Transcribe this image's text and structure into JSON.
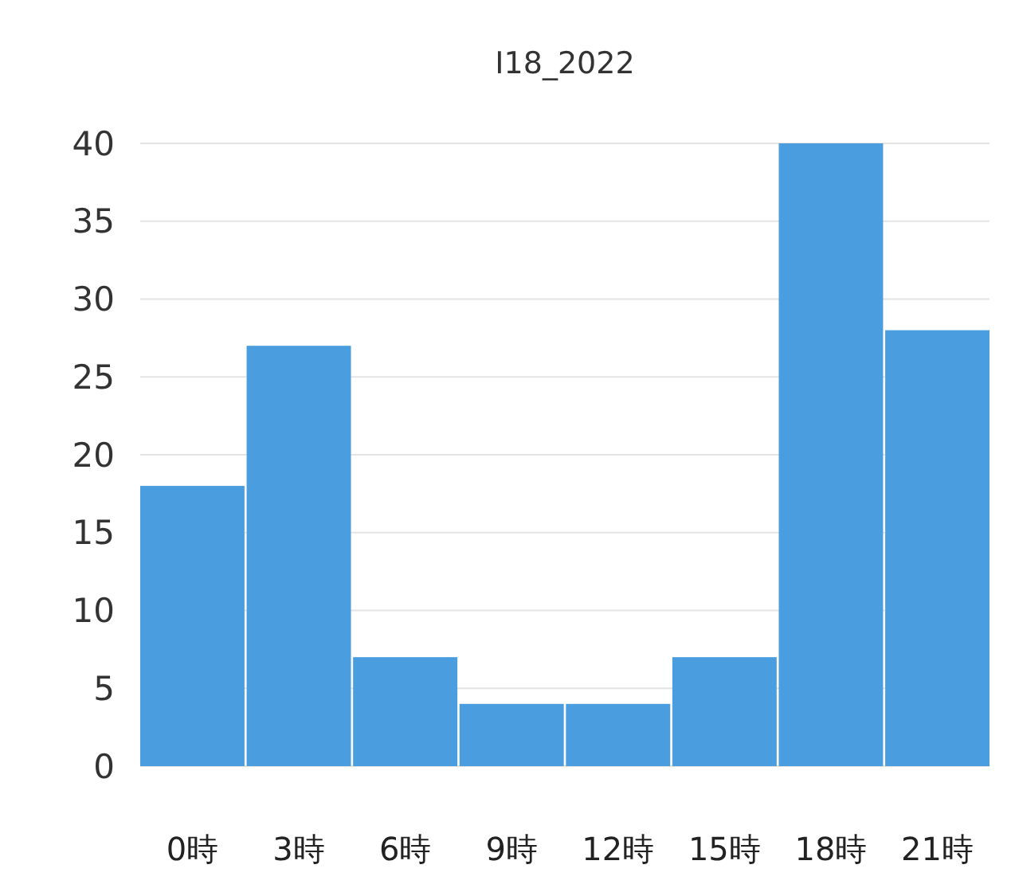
{
  "chart_data": {
    "type": "bar",
    "title": "I18_2022",
    "categories": [
      "0時",
      "3時",
      "6時",
      "9時",
      "12時",
      "15時",
      "18時",
      "21時"
    ],
    "values": [
      18,
      27,
      7,
      4,
      4,
      7,
      40,
      28
    ],
    "color": "#4a9ee0",
    "ylim": [
      0,
      40
    ],
    "yticks": [
      0,
      5,
      10,
      15,
      20,
      25,
      30,
      35,
      40
    ],
    "grid": "y"
  }
}
